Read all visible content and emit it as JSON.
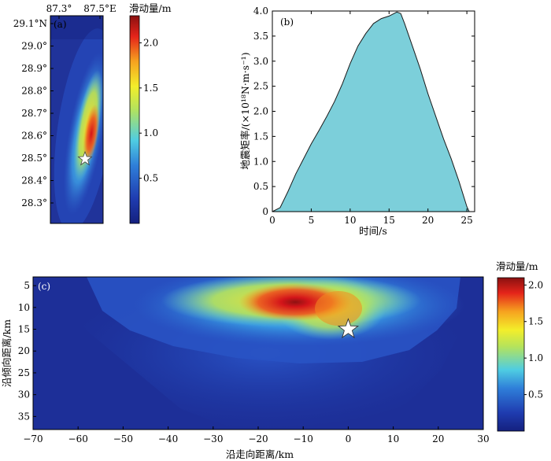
{
  "chart_data": [
    {
      "type": "heatmap",
      "panel": "(a)",
      "x_ticks": [
        "87.3°",
        "87.5°E"
      ],
      "y_ticks": [
        "29.1°N",
        "29.0°",
        "28.9°",
        "28.8°",
        "28.7°",
        "28.6°",
        "28.5°",
        "28.4°",
        "28.3°"
      ],
      "colorbar": {
        "title": "滑动量/m",
        "ticks": [
          "0.5",
          "1.0",
          "1.5",
          "2.0"
        ],
        "tick_values": [
          0.5,
          1.0,
          1.5,
          2.0
        ],
        "range": [
          0,
          2.3
        ]
      },
      "epicenter": {
        "lon": 87.45,
        "lat": 28.5
      },
      "colors": {
        "low": "#1a2a8a",
        "mid": "#4bd3e0",
        "high": "#c3121a"
      }
    },
    {
      "type": "area",
      "panel": "(b)",
      "xlabel": "时间/s",
      "ylabel": "地震矩率/(×10¹⁸N·m·s⁻¹)",
      "xlim": [
        0,
        26
      ],
      "ylim": [
        0,
        4.0
      ],
      "x_ticks": [
        "0",
        "5",
        "10",
        "15",
        "20",
        "25"
      ],
      "x_tick_values": [
        0,
        5,
        10,
        15,
        20,
        25
      ],
      "y_ticks": [
        "0",
        "0.5",
        "1.0",
        "1.5",
        "2.0",
        "2.5",
        "3.0",
        "3.5",
        "4.0"
      ],
      "y_tick_values": [
        0,
        0.5,
        1.0,
        1.5,
        2.0,
        2.5,
        3.0,
        3.5,
        4.0
      ],
      "x": [
        0,
        1,
        2,
        3,
        4,
        5,
        6,
        7,
        8,
        9,
        10,
        11,
        12,
        13,
        14,
        15,
        16,
        16.5,
        17,
        18,
        19,
        20,
        21,
        22,
        23,
        24,
        25,
        25.3
      ],
      "values": [
        0,
        0.08,
        0.4,
        0.75,
        1.05,
        1.35,
        1.62,
        1.9,
        2.2,
        2.55,
        2.95,
        3.3,
        3.55,
        3.75,
        3.85,
        3.9,
        3.98,
        3.95,
        3.75,
        3.3,
        2.85,
        2.35,
        1.9,
        1.45,
        1.05,
        0.6,
        0.1,
        0
      ],
      "fill": "#7ccfda"
    },
    {
      "type": "heatmap",
      "panel": "(c)",
      "xlabel": "沿走向距离/km",
      "ylabel": "沿倾向距离/km",
      "xlim": [
        -70,
        30
      ],
      "ylim": [
        38,
        3
      ],
      "x_ticks": [
        "−70",
        "−60",
        "−50",
        "−40",
        "−30",
        "−20",
        "−10",
        "0",
        "10",
        "20",
        "30"
      ],
      "x_tick_values": [
        -70,
        -60,
        -50,
        -40,
        -30,
        -20,
        -10,
        0,
        10,
        20,
        30
      ],
      "y_ticks": [
        "5",
        "10",
        "15",
        "20",
        "25",
        "30",
        "35"
      ],
      "y_tick_values": [
        5,
        10,
        15,
        20,
        25,
        30,
        35
      ],
      "colorbar": {
        "title": "滑动量/m",
        "ticks": [
          "0.5",
          "1.0",
          "1.5",
          "2.0"
        ],
        "tick_values": [
          0.5,
          1.0,
          1.5,
          2.0
        ],
        "range": [
          0,
          2.1
        ]
      },
      "epicenter": {
        "x": 0,
        "y": 15
      }
    }
  ]
}
